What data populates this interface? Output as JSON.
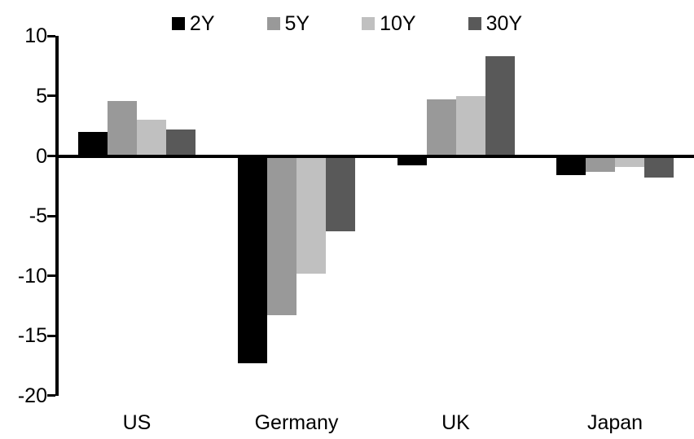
{
  "chart_data": {
    "type": "bar",
    "title": "",
    "xlabel": "",
    "ylabel": "",
    "categories": [
      "US",
      "Germany",
      "UK",
      "Japan"
    ],
    "series": [
      {
        "name": "2Y",
        "color": "#000000",
        "values": [
          2.0,
          -17.3,
          -0.8,
          -1.6
        ]
      },
      {
        "name": "5Y",
        "color": "#999999",
        "values": [
          4.6,
          -13.3,
          4.7,
          -1.3
        ]
      },
      {
        "name": "10Y",
        "color": "#c0c0c0",
        "values": [
          3.0,
          -9.8,
          5.0,
          -0.9
        ]
      },
      {
        "name": "30Y",
        "color": "#595959",
        "values": [
          2.2,
          -6.3,
          8.3,
          -1.8
        ]
      }
    ],
    "y_axis": {
      "min": -20,
      "max": 10,
      "tick_step": 5,
      "ticks": [
        10,
        5,
        0,
        -5,
        -10,
        -15,
        -20
      ]
    },
    "legend_position": "top",
    "grid": false,
    "axis_color": "#000000",
    "background_color": "#ffffff"
  }
}
